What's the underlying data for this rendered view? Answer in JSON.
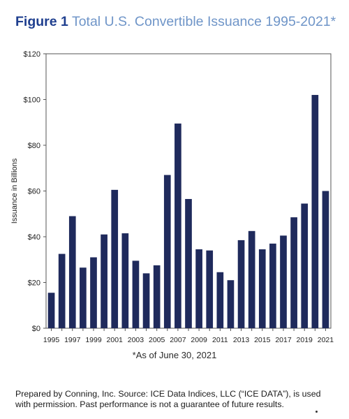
{
  "figure": {
    "label": "Figure 1",
    "title": "Total U.S. Convertible Issuance 1995-2021*"
  },
  "note": "*As of June 30, 2021",
  "footer": "Prepared by Conning, Inc. Source: ICE Data Indices, LLC (“ICE DATA”), is used with permission. Past performance is not a guarantee of future results.",
  "colors": {
    "bar": "#1f2a5c",
    "axis": "#555555",
    "title_label": "#1f3f8f",
    "title_text": "#6f95c8"
  },
  "chart_data": {
    "type": "bar",
    "title": "Total U.S. Convertible Issuance 1995-2021*",
    "xlabel": "",
    "ylabel": "Issuance in Billions",
    "ylim": [
      0,
      120
    ],
    "yticks": [
      0,
      20,
      40,
      60,
      80,
      100,
      120
    ],
    "ytick_labels": [
      "$0",
      "$20",
      "$40",
      "$60",
      "$80",
      "$100",
      "$120"
    ],
    "grid": false,
    "categories": [
      "1995",
      "1996",
      "1997",
      "1998",
      "1999",
      "2000",
      "2001",
      "2002",
      "2003",
      "2004",
      "2005",
      "2006",
      "2007",
      "2008",
      "2009",
      "2010",
      "2011",
      "2012",
      "2013",
      "2014",
      "2015",
      "2016",
      "2017",
      "2018",
      "2019",
      "2020",
      "2021"
    ],
    "xtick_labels": [
      "1995",
      "1997",
      "1999",
      "2001",
      "2003",
      "2005",
      "2007",
      "2009",
      "2011",
      "2013",
      "2015",
      "2017",
      "2019",
      "2021"
    ],
    "values": [
      15.5,
      32.5,
      49,
      26.5,
      31,
      41,
      60.5,
      41.5,
      29.5,
      24,
      27.5,
      67,
      89.5,
      56.5,
      34.5,
      34,
      24.5,
      21,
      38.5,
      42.5,
      34.5,
      37,
      40.5,
      48.5,
      54.5,
      102,
      60
    ]
  }
}
